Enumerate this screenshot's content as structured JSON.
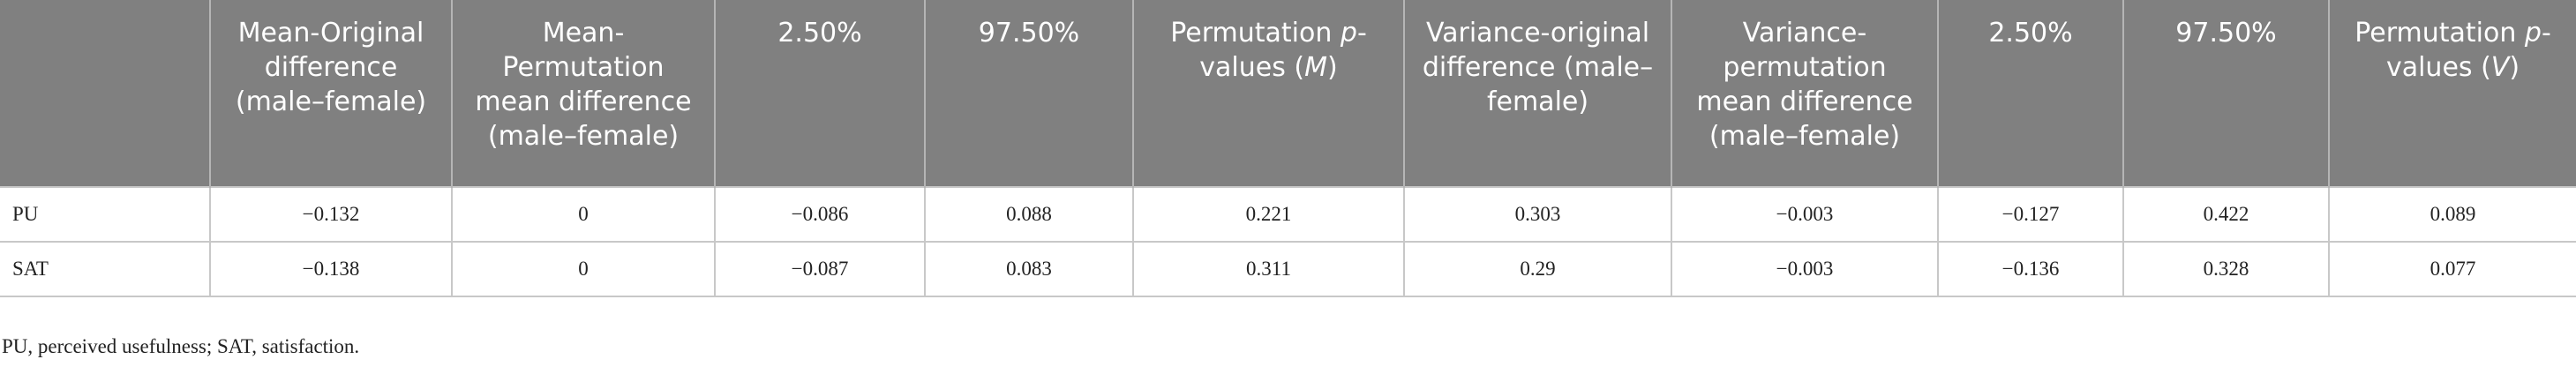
{
  "table": {
    "header": [
      [
        ""
      ],
      [
        "Mean-Original difference (male–female)"
      ],
      [
        "Mean-Permutation mean difference (male–female)"
      ],
      [
        "2.50%"
      ],
      [
        "97.50%"
      ],
      [
        "Permutation ",
        "p",
        "-values (",
        "M",
        ")"
      ],
      [
        "Variance-original difference (male–female)"
      ],
      [
        "Variance-permutation mean difference (male–female)"
      ],
      [
        "2.50%"
      ],
      [
        "97.50%"
      ],
      [
        "Permutation ",
        "p",
        "-values (",
        "V",
        ")"
      ]
    ],
    "rows": [
      [
        "PU",
        "−0.132",
        "0",
        "−0.086",
        "0.088",
        "0.221",
        "0.303",
        "−0.003",
        "−0.127",
        "0.422",
        "0.089"
      ],
      [
        "SAT",
        "−0.138",
        "0",
        "−0.087",
        "0.083",
        "0.311",
        "0.29",
        "−0.003",
        "−0.136",
        "0.328",
        "0.077"
      ]
    ],
    "footnote": "PU, perceived usefulness; SAT, satisfaction."
  }
}
